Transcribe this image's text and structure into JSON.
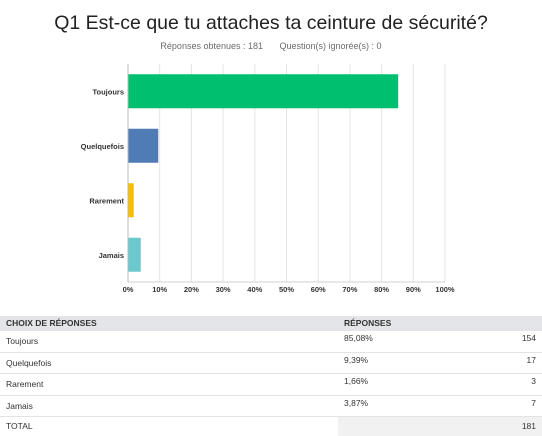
{
  "header": {
    "title": "Q1 Est-ce que tu attaches ta ceinture de sécurité?",
    "answered": "Réponses obtenues : 181",
    "skipped": "Question(s) ignorée(s) : 0"
  },
  "chart_data": {
    "type": "bar",
    "orientation": "horizontal",
    "categories": [
      "Toujours",
      "Quelquefois",
      "Rarement",
      "Jamais"
    ],
    "values": [
      85.08,
      9.39,
      1.66,
      3.87
    ],
    "colors": [
      "#00bf6f",
      "#507cb6",
      "#f9be00",
      "#6bc8cd"
    ],
    "xlim": [
      0,
      100
    ],
    "xticks": [
      "0%",
      "10%",
      "20%",
      "30%",
      "40%",
      "50%",
      "60%",
      "70%",
      "80%",
      "90%",
      "100%"
    ],
    "grid": true
  },
  "table": {
    "headers": [
      "CHOIX DE RÉPONSES",
      "RÉPONSES",
      ""
    ],
    "rows": [
      {
        "choice": "Toujours",
        "pct": "85,08%",
        "count": "154"
      },
      {
        "choice": "Quelquefois",
        "pct": "9,39%",
        "count": "17"
      },
      {
        "choice": "Rarement",
        "pct": "1,66%",
        "count": "3"
      },
      {
        "choice": "Jamais",
        "pct": "3,87%",
        "count": "7"
      }
    ],
    "total_label": "TOTAL",
    "total_value": "181"
  }
}
